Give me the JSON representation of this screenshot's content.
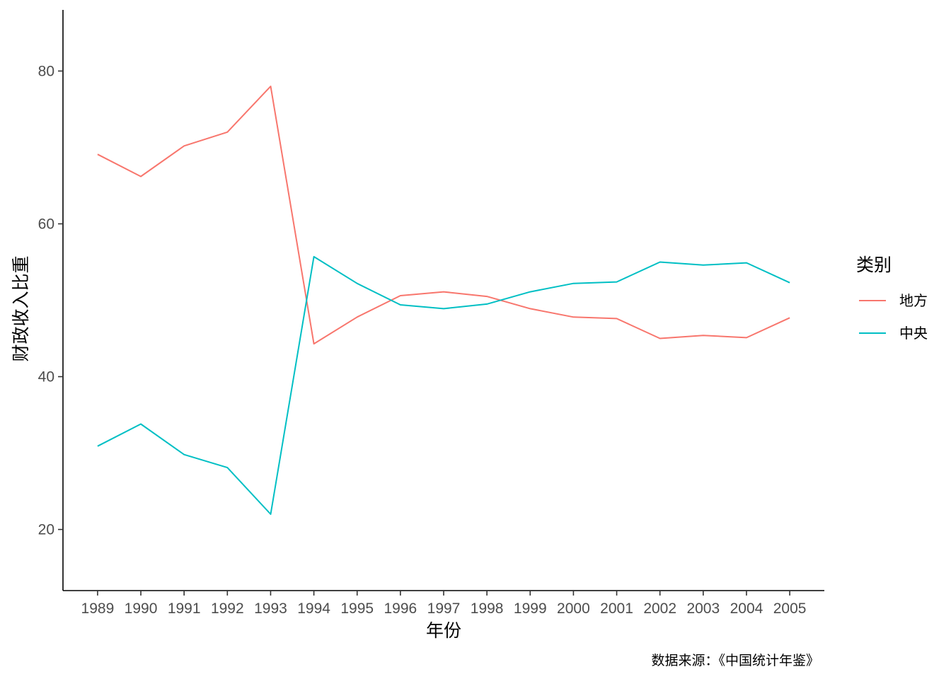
{
  "chart_data": {
    "type": "line",
    "title": "",
    "xlabel": "年份",
    "ylabel": "财政收入比重",
    "caption": "数据来源：《中国统计年鉴》",
    "x": [
      1989,
      1990,
      1991,
      1992,
      1993,
      1994,
      1995,
      1996,
      1997,
      1998,
      1999,
      2000,
      2001,
      2002,
      2003,
      2004,
      2005
    ],
    "xticks": [
      "1989",
      "1990",
      "1991",
      "1992",
      "1993",
      "1994",
      "1995",
      "1996",
      "1997",
      "1998",
      "1999",
      "2000",
      "2001",
      "2002",
      "2003",
      "2004",
      "2005"
    ],
    "yticks": [
      20,
      40,
      60,
      80
    ],
    "ylim": [
      12,
      88
    ],
    "xlim": [
      1988.2,
      2005.8
    ],
    "grid": false,
    "legend": {
      "title": "类别",
      "position": "right"
    },
    "series": [
      {
        "name": "地方",
        "color": "#F8766D",
        "values": [
          69.1,
          66.2,
          70.2,
          72.0,
          78.0,
          44.3,
          47.8,
          50.6,
          51.1,
          50.5,
          48.9,
          47.8,
          47.6,
          45.0,
          45.4,
          45.1,
          47.7
        ]
      },
      {
        "name": "中央",
        "color": "#00BFC4",
        "values": [
          30.9,
          33.8,
          29.8,
          28.1,
          22.0,
          55.7,
          52.2,
          49.4,
          48.9,
          49.5,
          51.1,
          52.2,
          52.4,
          55.0,
          54.6,
          54.9,
          52.3
        ]
      }
    ]
  }
}
